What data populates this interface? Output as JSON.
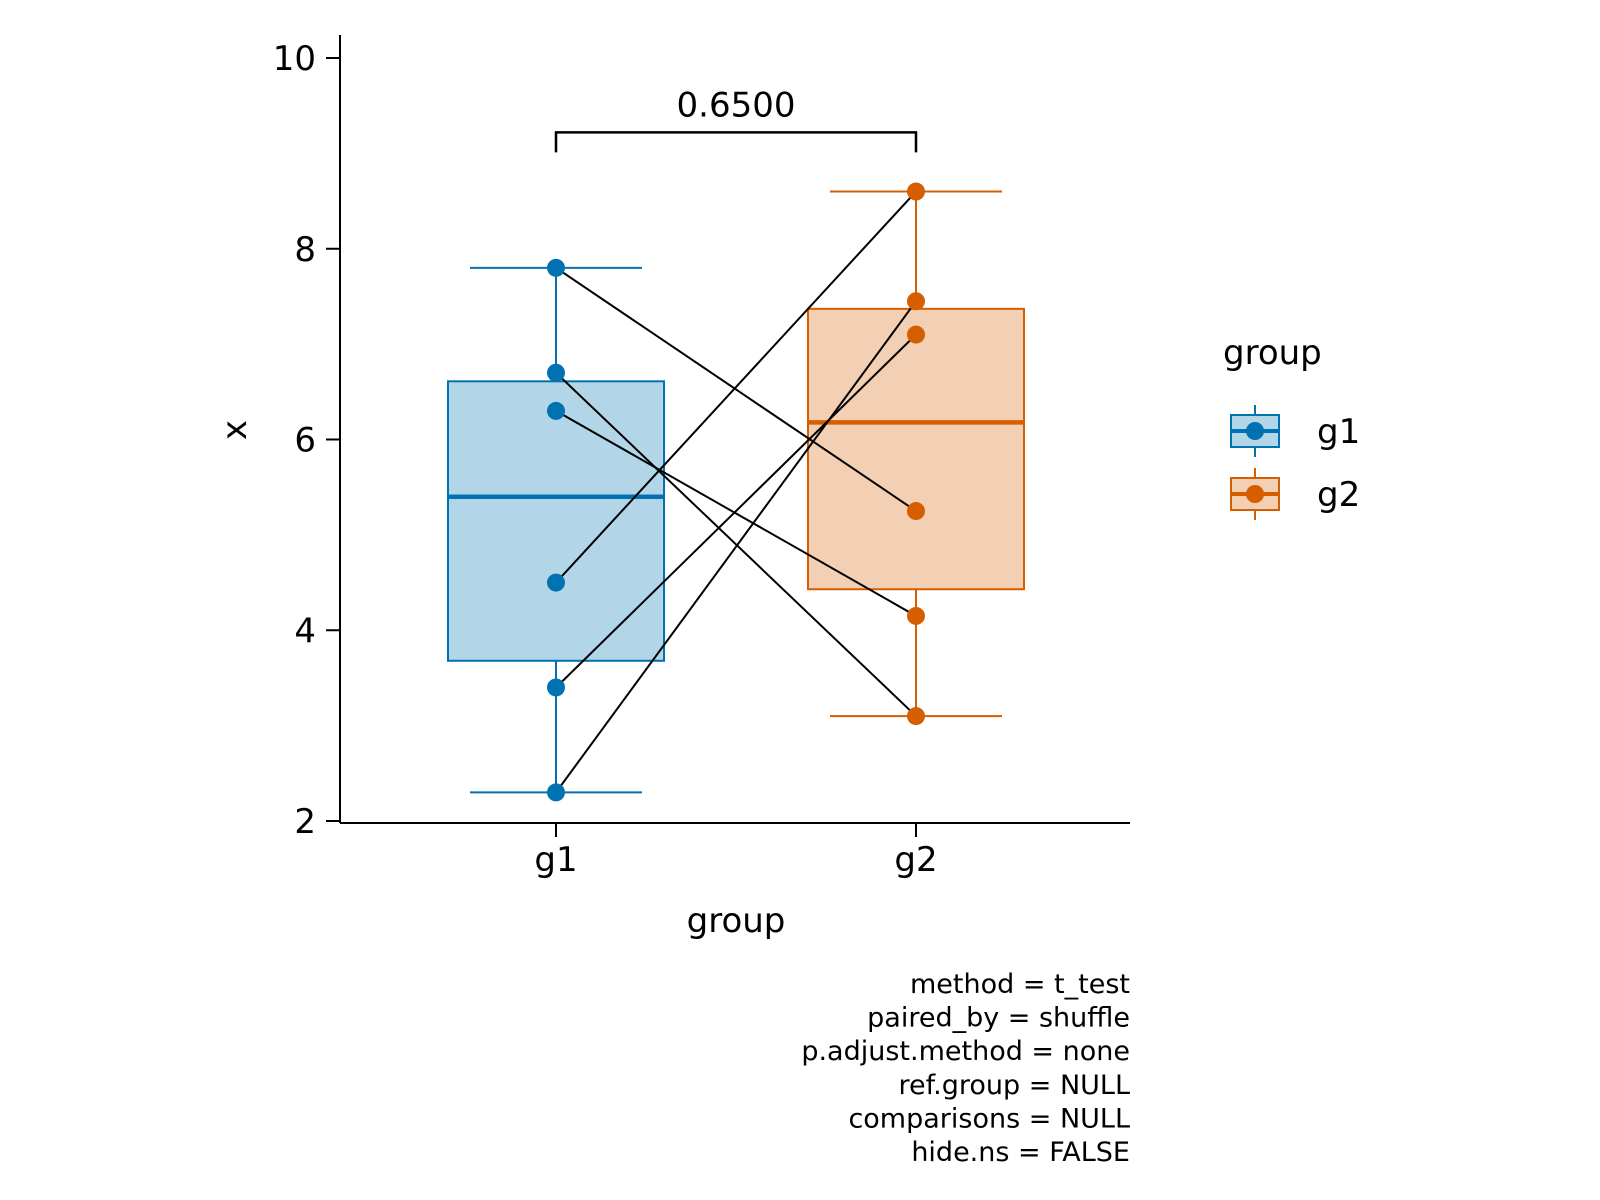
{
  "chart_data": {
    "type": "box",
    "xlabel": "group",
    "ylabel": "x",
    "ylim": [
      2,
      10
    ],
    "yticks": [
      2,
      4,
      6,
      8,
      10
    ],
    "categories": [
      "g1",
      "g2"
    ],
    "groups": [
      {
        "name": "g1",
        "color": "#0072B2",
        "fill": "#B3D5E8",
        "box": {
          "lower_whisker": 2.3,
          "q1": 3.68,
          "median": 5.4,
          "q3": 6.61,
          "upper_whisker": 7.8
        },
        "points": [
          7.8,
          6.7,
          6.3,
          4.5,
          3.4,
          2.3
        ]
      },
      {
        "name": "g2",
        "color": "#D55E00",
        "fill": "#F3CFB3",
        "box": {
          "lower_whisker": 3.1,
          "q1": 4.43,
          "median": 6.18,
          "q3": 7.37,
          "upper_whisker": 8.6
        },
        "points": [
          8.6,
          7.45,
          7.1,
          5.25,
          4.15,
          3.1
        ]
      }
    ],
    "pairs": [
      [
        7.8,
        5.25
      ],
      [
        6.7,
        3.1
      ],
      [
        6.3,
        4.15
      ],
      [
        4.5,
        8.6
      ],
      [
        3.4,
        7.1
      ],
      [
        2.3,
        7.45
      ]
    ],
    "comparison": {
      "from": "g1",
      "to": "g2",
      "label": "0.6500",
      "y": 9.22
    },
    "legend": {
      "title": "group",
      "position": "right",
      "entries": [
        {
          "label": "g1",
          "color": "#0072B2",
          "fill": "#B3D5E8"
        },
        {
          "label": "g2",
          "color": "#D55E00",
          "fill": "#F3CFB3"
        }
      ]
    },
    "caption": [
      "method = t_test",
      "paired_by = shuffle",
      "p.adjust.method = none",
      "ref.group = NULL",
      "comparisons = NULL",
      "hide.ns = FALSE"
    ]
  }
}
